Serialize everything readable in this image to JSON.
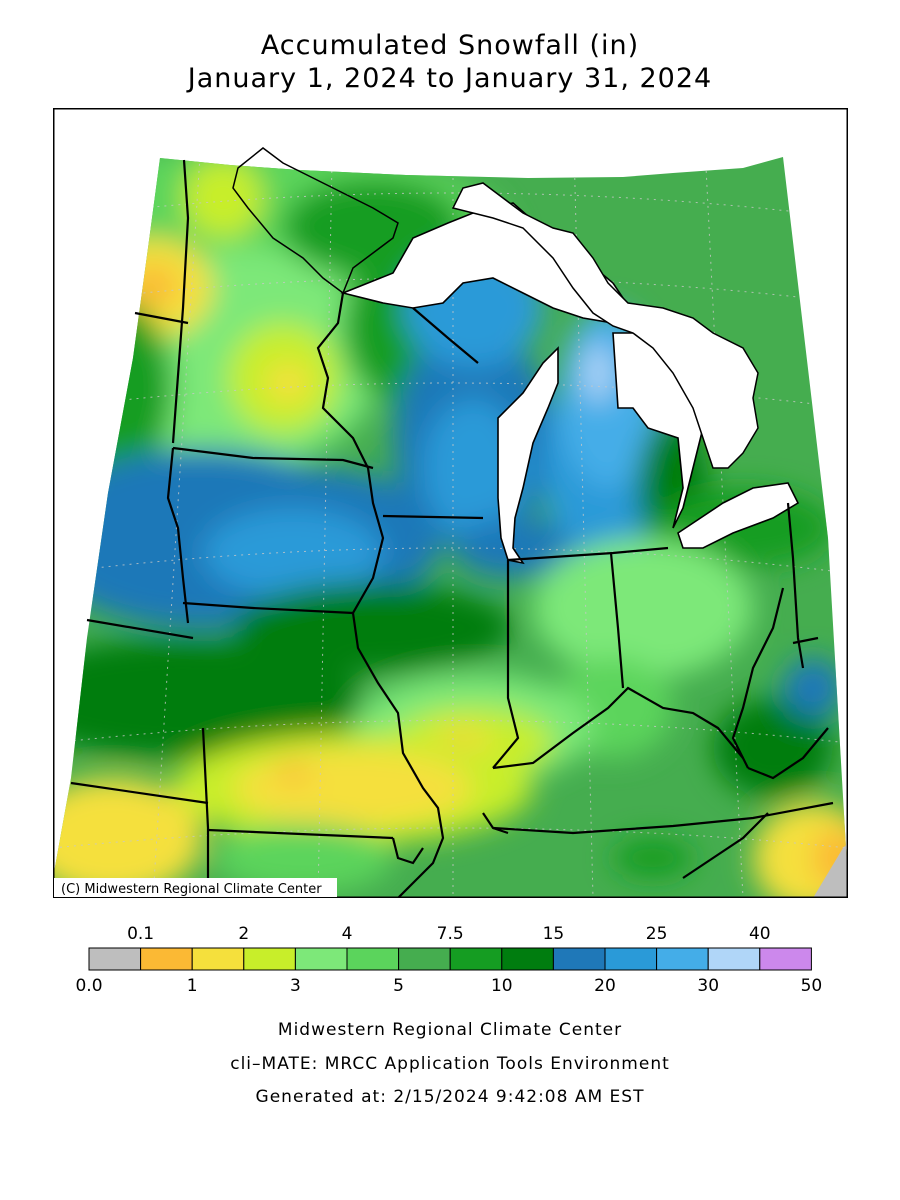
{
  "title": {
    "line1": "Accumulated Snowfall (in)",
    "line2": "January 1, 2024 to January 31, 2024"
  },
  "map": {
    "credit": "(C) Midwestern Regional Climate Center",
    "region": "Midwest US states and Great Lakes",
    "colors": {
      "water": "#ffffff",
      "border": "#000000",
      "gridlines": "#c8c8c8"
    }
  },
  "legend": {
    "upper_labels": [
      "0.1",
      "2",
      "4",
      "7.5",
      "15",
      "25",
      "40"
    ],
    "lower_labels": [
      "0.0",
      "1",
      "3",
      "5",
      "10",
      "20",
      "30",
      "50"
    ],
    "bins": [
      {
        "range": "0.0-0.1",
        "color": "#bebebe"
      },
      {
        "range": "0.1-1",
        "color": "#fbb934"
      },
      {
        "range": "1-2",
        "color": "#f5e03c"
      },
      {
        "range": "2-3",
        "color": "#c8ee2a"
      },
      {
        "range": "3-4",
        "color": "#7de879"
      },
      {
        "range": "4-5",
        "color": "#5bd45c"
      },
      {
        "range": "5-7.5",
        "color": "#45ad4f"
      },
      {
        "range": "7.5-10",
        "color": "#159d22"
      },
      {
        "range": "10-15",
        "color": "#007d0f"
      },
      {
        "range": "15-20",
        "color": "#1f78b8"
      },
      {
        "range": "20-25",
        "color": "#2a9ad8"
      },
      {
        "range": "25-30",
        "color": "#44ade8"
      },
      {
        "range": "30-40",
        "color": "#b0d6f8"
      },
      {
        "range": "40-50",
        "color": "#cc88ec"
      }
    ]
  },
  "footer": {
    "line1": "Midwestern Regional Climate Center",
    "line2": "cli–MATE: MRCC Application Tools Environment",
    "line3": "Generated at: 2/15/2024 9:42:08 AM EST"
  }
}
